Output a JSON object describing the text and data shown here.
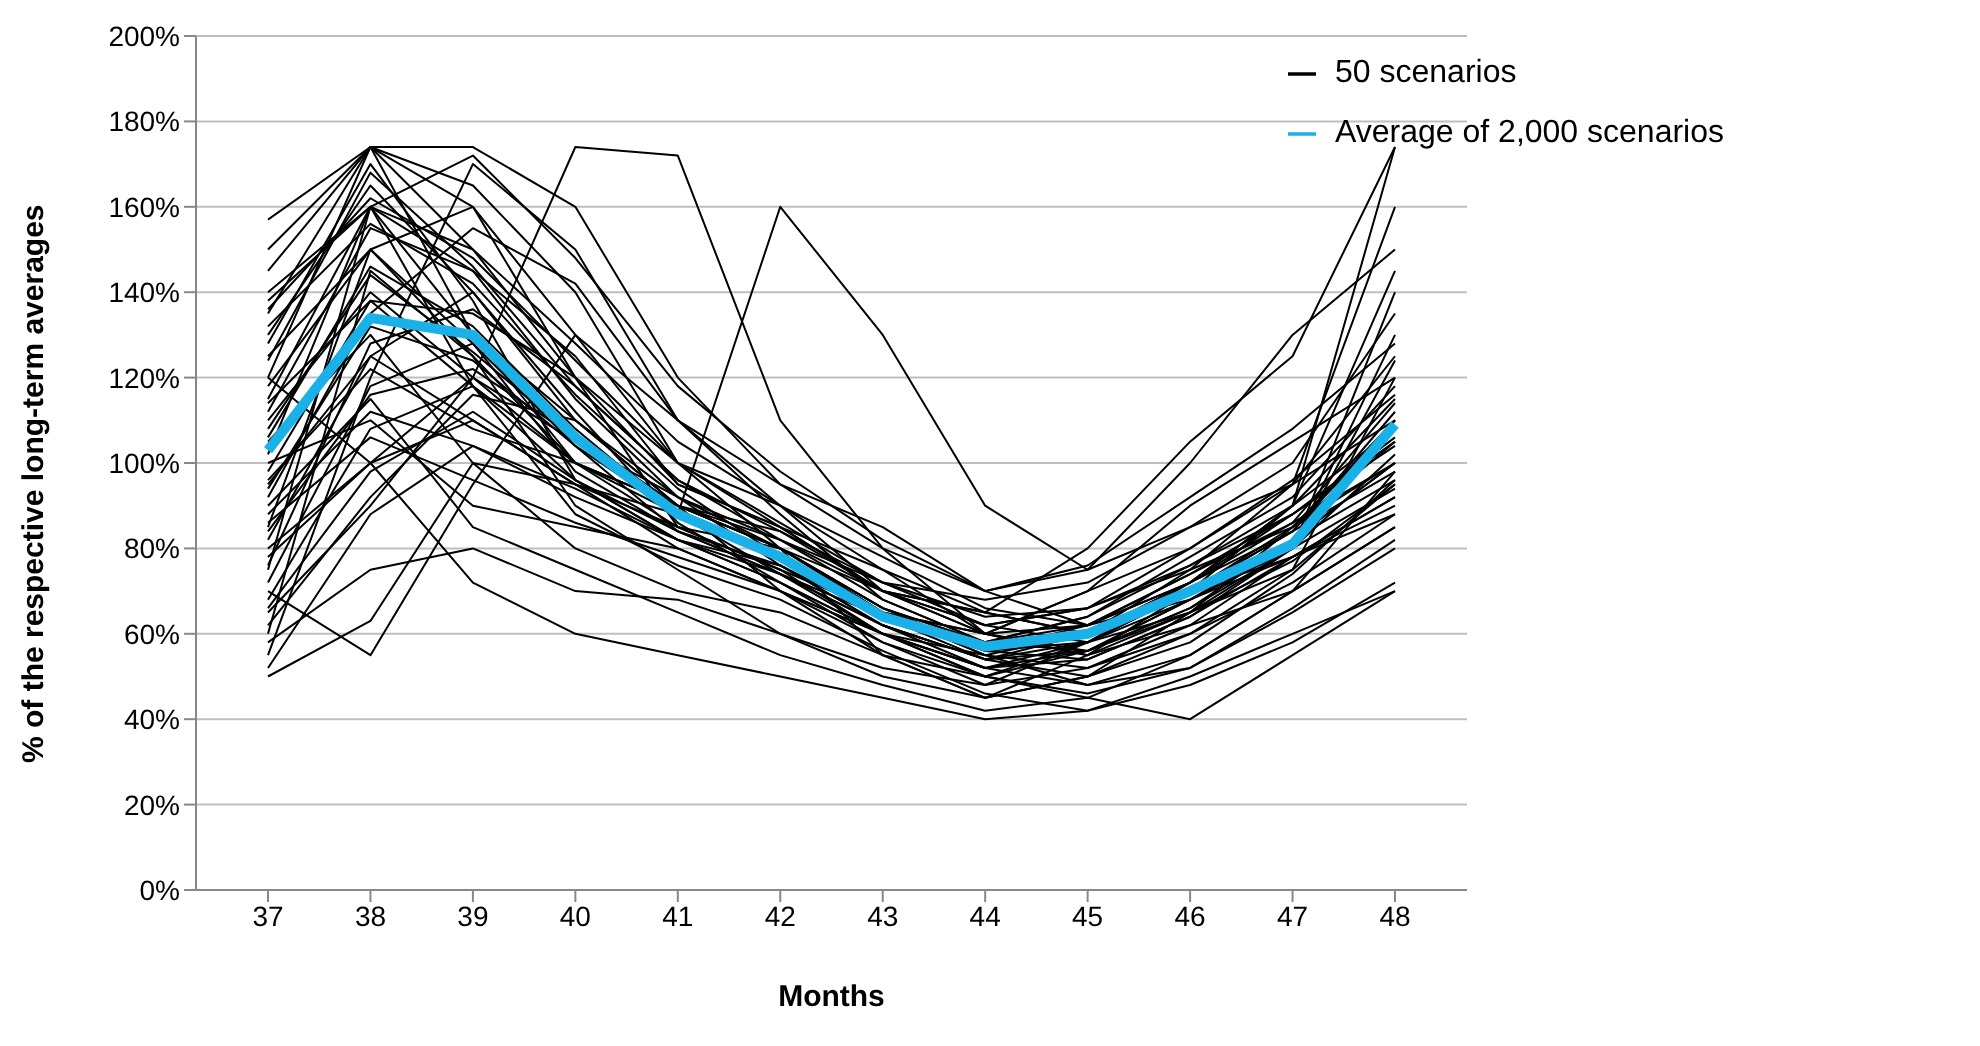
{
  "chart_data": {
    "type": "line",
    "xlabel": "Months",
    "ylabel": "% of the respective long-term averages",
    "categories": [
      "37",
      "38",
      "39",
      "40",
      "41",
      "42",
      "43",
      "44",
      "45",
      "46",
      "47",
      "48"
    ],
    "ylim": [
      0,
      200
    ],
    "yticks": [
      {
        "value": 0,
        "label": "0%"
      },
      {
        "value": 20,
        "label": "20%"
      },
      {
        "value": 40,
        "label": "40%"
      },
      {
        "value": 60,
        "label": "60%"
      },
      {
        "value": 80,
        "label": "80%"
      },
      {
        "value": 100,
        "label": "100%"
      },
      {
        "value": 120,
        "label": "120%"
      },
      {
        "value": 140,
        "label": "140%"
      },
      {
        "value": 160,
        "label": "160%"
      },
      {
        "value": 180,
        "label": "180%"
      },
      {
        "value": 200,
        "label": "200%"
      }
    ],
    "grid": "y",
    "legend": "top right",
    "marker": "none",
    "line_style": "solid",
    "series": [
      {
        "name": "50 scenarios",
        "color": "#000000",
        "values": [
          157,
          174,
          174,
          160,
          120,
          95,
          80,
          70,
          62,
          72,
          90,
          174
        ]
      },
      {
        "color": "#000000",
        "values": [
          50,
          63,
          100,
          95,
          80,
          70,
          60,
          55,
          52,
          60,
          75,
          120
        ]
      },
      {
        "color": "#000000",
        "values": [
          135,
          174,
          150,
          120,
          95,
          85,
          70,
          62,
          58,
          68,
          80,
          140
        ]
      },
      {
        "color": "#000000",
        "values": [
          75,
          160,
          130,
          110,
          90,
          80,
          65,
          55,
          60,
          75,
          85,
          100
        ]
      },
      {
        "color": "#000000",
        "values": [
          110,
          140,
          120,
          100,
          85,
          75,
          60,
          52,
          58,
          70,
          78,
          90
        ]
      },
      {
        "color": "#000000",
        "values": [
          95,
          125,
          110,
          95,
          88,
          160,
          130,
          90,
          75,
          85,
          95,
          110
        ]
      },
      {
        "color": "#000000",
        "values": [
          65,
          90,
          120,
          174,
          172,
          110,
          80,
          60,
          70,
          80,
          95,
          160
        ]
      },
      {
        "color": "#000000",
        "values": [
          120,
          174,
          165,
          140,
          100,
          80,
          55,
          45,
          50,
          65,
          80,
          130
        ]
      },
      {
        "color": "#000000",
        "values": [
          85,
          150,
          160,
          120,
          85,
          75,
          65,
          60,
          55,
          70,
          90,
          145
        ]
      },
      {
        "color": "#000000",
        "values": [
          55,
          120,
          170,
          150,
          110,
          90,
          70,
          65,
          80,
          105,
          125,
          174
        ]
      },
      {
        "color": "#000000",
        "values": [
          100,
          110,
          90,
          85,
          80,
          70,
          55,
          50,
          45,
          55,
          70,
          85
        ]
      },
      {
        "color": "#000000",
        "values": [
          130,
          165,
          140,
          110,
          90,
          80,
          65,
          60,
          70,
          90,
          105,
          120
        ]
      },
      {
        "color": "#000000",
        "values": [
          80,
          100,
          72,
          60,
          55,
          50,
          45,
          40,
          42,
          50,
          60,
          70
        ]
      },
      {
        "color": "#000000",
        "values": [
          145,
          174,
          130,
          100,
          90,
          70,
          60,
          50,
          58,
          65,
          75,
          95
        ]
      },
      {
        "color": "#000000",
        "values": [
          70,
          55,
          95,
          130,
          110,
          95,
          85,
          70,
          75,
          100,
          130,
          150
        ]
      },
      {
        "color": "#000000",
        "values": [
          115,
          160,
          145,
          125,
          95,
          85,
          70,
          65,
          60,
          70,
          85,
          105
        ]
      },
      {
        "color": "#000000",
        "values": [
          60,
          145,
          125,
          90,
          75,
          60,
          50,
          45,
          55,
          65,
          85,
          110
        ]
      },
      {
        "color": "#000000",
        "values": [
          105,
          130,
          100,
          80,
          70,
          65,
          55,
          45,
          50,
          60,
          72,
          88
        ]
      },
      {
        "color": "#000000",
        "values": [
          125,
          150,
          125,
          100,
          88,
          78,
          65,
          55,
          48,
          52,
          65,
          80
        ]
      },
      {
        "color": "#000000",
        "values": [
          90,
          115,
          85,
          75,
          65,
          55,
          48,
          42,
          45,
          40,
          55,
          70
        ]
      },
      {
        "color": "#000000",
        "values": [
          150,
          174,
          160,
          130,
          100,
          85,
          75,
          60,
          55,
          62,
          70,
          85
        ]
      },
      {
        "color": "#000000",
        "values": [
          78,
          100,
          110,
          95,
          85,
          80,
          70,
          62,
          66,
          75,
          95,
          125
        ]
      },
      {
        "color": "#000000",
        "values": [
          98,
          138,
          135,
          120,
          100,
          90,
          75,
          65,
          60,
          72,
          90,
          115
        ]
      },
      {
        "color": "#000000",
        "values": [
          68,
          108,
          118,
          100,
          90,
          82,
          72,
          68,
          72,
          85,
          100,
          135
        ]
      },
      {
        "color": "#000000",
        "values": [
          112,
          155,
          145,
          115,
          92,
          76,
          62,
          52,
          48,
          55,
          70,
          98
        ]
      },
      {
        "color": "#000000",
        "values": [
          82,
          125,
          140,
          112,
          86,
          72,
          58,
          48,
          52,
          62,
          78,
          92
        ]
      },
      {
        "color": "#000000",
        "values": [
          138,
          160,
          150,
          128,
          105,
          90,
          78,
          66,
          62,
          68,
          78,
          88
        ]
      },
      {
        "color": "#000000",
        "values": [
          58,
          75,
          80,
          70,
          68,
          60,
          52,
          48,
          58,
          72,
          88,
          105
        ]
      },
      {
        "color": "#000000",
        "values": [
          120,
          100,
          120,
          105,
          92,
          82,
          70,
          60,
          56,
          65,
          77,
          95
        ]
      },
      {
        "color": "#000000",
        "values": [
          102,
          160,
          118,
          88,
          76,
          68,
          56,
          46,
          42,
          48,
          58,
          72
        ]
      },
      {
        "color": "#000000",
        "values": [
          92,
          135,
          155,
          142,
          110,
          88,
          68,
          58,
          64,
          78,
          92,
          118
        ]
      },
      {
        "color": "#000000",
        "values": [
          72,
          118,
          128,
          104,
          84,
          74,
          64,
          56,
          62,
          74,
          86,
          100
        ]
      },
      {
        "color": "#000000",
        "values": [
          128,
          170,
          138,
          96,
          82,
          72,
          60,
          50,
          46,
          52,
          66,
          82
        ]
      },
      {
        "color": "#000000",
        "values": [
          108,
          144,
          126,
          106,
          90,
          80,
          66,
          56,
          54,
          64,
          80,
          102
        ]
      },
      {
        "color": "#000000",
        "values": [
          88,
          112,
          104,
          92,
          82,
          76,
          62,
          54,
          60,
          70,
          84,
          112
        ]
      },
      {
        "color": "#000000",
        "values": [
          140,
          160,
          172,
          148,
          118,
          98,
          82,
          70,
          76,
          92,
          108,
          128
        ]
      },
      {
        "color": "#000000",
        "values": [
          62,
          92,
          116,
          110,
          92,
          80,
          66,
          58,
          64,
          76,
          90,
          108
        ]
      },
      {
        "color": "#000000",
        "values": [
          118,
          150,
          128,
          98,
          84,
          74,
          62,
          54,
          50,
          58,
          74,
          96
        ]
      },
      {
        "color": "#000000",
        "values": [
          96,
          122,
          108,
          100,
          90,
          84,
          72,
          64,
          66,
          76,
          88,
          104
        ]
      },
      {
        "color": "#000000",
        "values": [
          76,
          128,
          136,
          118,
          96,
          82,
          68,
          58,
          56,
          66,
          80,
          94
        ]
      },
      {
        "color": "#000000",
        "values": [
          132,
          156,
          142,
          116,
          94,
          78,
          64,
          54,
          56,
          68,
          82,
          100
        ]
      },
      {
        "color": "#000000",
        "values": [
          86,
          106,
          96,
          86,
          78,
          70,
          58,
          50,
          56,
          66,
          82,
          96
        ]
      },
      {
        "color": "#000000",
        "values": [
          106,
          146,
          132,
          108,
          88,
          74,
          60,
          52,
          56,
          68,
          80,
          124
        ]
      },
      {
        "color": "#000000",
        "values": [
          66,
          98,
          112,
          96,
          84,
          76,
          64,
          56,
          58,
          70,
          84,
          98
        ]
      },
      {
        "color": "#000000",
        "values": [
          124,
          168,
          146,
          118,
          96,
          84,
          70,
          60,
          62,
          72,
          84,
          110
        ]
      },
      {
        "color": "#000000",
        "values": [
          94,
          132,
          124,
          104,
          88,
          78,
          64,
          56,
          60,
          72,
          86,
          114
        ]
      },
      {
        "color": "#000000",
        "values": [
          84,
          116,
          122,
          106,
          90,
          80,
          66,
          58,
          62,
          74,
          88,
          106
        ]
      },
      {
        "color": "#000000",
        "values": [
          114,
          138,
          118,
          96,
          82,
          72,
          60,
          52,
          54,
          64,
          78,
          92
        ]
      },
      {
        "color": "#000000",
        "values": [
          52,
          88,
          104,
          94,
          82,
          74,
          62,
          54,
          58,
          70,
          82,
          100
        ]
      },
      {
        "color": "#000000",
        "values": [
          136,
          162,
          148,
          124,
          100,
          86,
          72,
          62,
          66,
          80,
          96,
          116
        ]
      },
      {
        "name": "Average of 2,000 scenarios",
        "color": "#1ab0e8",
        "values": [
          103,
          134,
          130,
          106,
          88,
          78,
          64,
          57,
          60,
          70,
          81,
          109
        ]
      }
    ]
  }
}
